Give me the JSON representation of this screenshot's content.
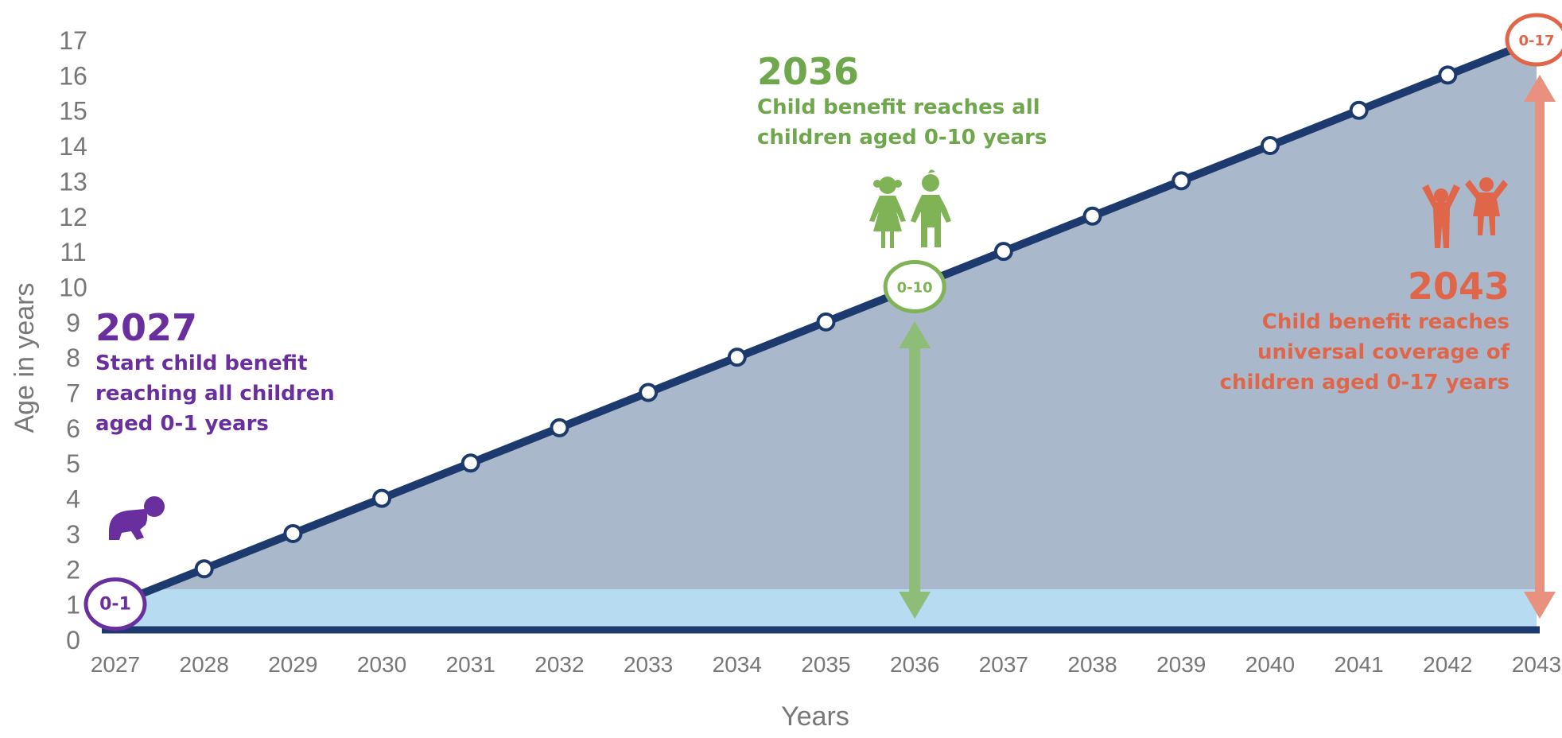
{
  "chart_data": {
    "type": "line",
    "x": [
      2027,
      2028,
      2029,
      2030,
      2031,
      2032,
      2033,
      2034,
      2035,
      2036,
      2037,
      2038,
      2039,
      2040,
      2041,
      2042,
      2043
    ],
    "y": [
      1,
      2,
      3,
      4,
      5,
      6,
      7,
      8,
      9,
      10,
      11,
      12,
      13,
      14,
      15,
      16,
      17
    ],
    "xlabel": "Years",
    "ylabel": "Age in years",
    "xlim": [
      2027,
      2043
    ],
    "ylim": [
      0,
      17
    ],
    "y_ticks": [
      0,
      1,
      2,
      3,
      4,
      5,
      6,
      7,
      8,
      9,
      10,
      11,
      12,
      13,
      14,
      15,
      16,
      17
    ],
    "x_ticks": [
      "2027",
      "2028",
      "2029",
      "2030",
      "2031",
      "2032",
      "2033",
      "2034",
      "2035",
      "2036",
      "2037",
      "2038",
      "2039",
      "2040",
      "2041",
      "2042",
      "2043"
    ],
    "grid": false,
    "markers": [
      {
        "x": 2027,
        "label": "0-1",
        "color": "#6a2f9e"
      },
      {
        "x": 2036,
        "label": "0-10",
        "color": "#7fb356"
      },
      {
        "x": 2043,
        "label": "0-17",
        "color": "#e0664a"
      }
    ],
    "annotations": [
      {
        "id": "2027",
        "year": "2027",
        "lines": [
          "Start child benefit",
          "reaching all children",
          "aged 0-1 years"
        ],
        "color": "#6a2f9e",
        "icon": "crawling-baby-icon"
      },
      {
        "id": "2036",
        "year": "2036",
        "lines": [
          "Child benefit reaches all",
          "children aged 0-10 years"
        ],
        "color": "#6fa84c",
        "icon": "children-icon"
      },
      {
        "id": "2043",
        "year": "2043",
        "lines": [
          "Child benefit reaches",
          "universal coverage of",
          "children aged 0-17 years"
        ],
        "color": "#e0664a",
        "icon": "teenagers-icon"
      }
    ],
    "colors": {
      "line": "#1d3a6e",
      "area": "#aab8cc",
      "band": "#b7dbf0",
      "axis_text": "#777777",
      "arrow_green": "#8ebd78",
      "arrow_red": "#e8917e"
    }
  }
}
